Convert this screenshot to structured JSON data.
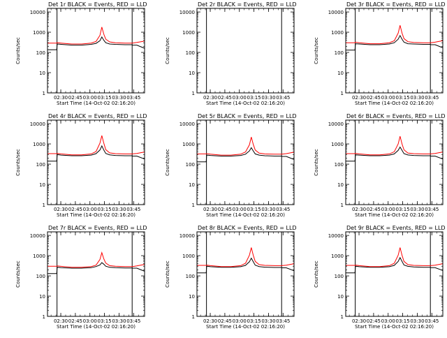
{
  "colors": {
    "background": "#ffffff",
    "axes": "#000000",
    "events_line": "#000000",
    "lld_line": "#ff0000"
  },
  "shared": {
    "xlabel": "Start Time (14-Oct-02 02:16:20)",
    "ylabel": "Counts/sec",
    "x_tick_labels": [
      "02:30",
      "02:45",
      "03:00",
      "03:15",
      "03:30",
      "03:45"
    ],
    "y_tick_labels": [
      "1",
      "10",
      "100",
      "1000",
      "10000"
    ]
  },
  "chart_data": [
    {
      "type": "line",
      "title": "Det 1r BLACK = Events, RED = LLD",
      "x_unit": "minutes after 02:16:20",
      "xlim": [
        0,
        100
      ],
      "ylim": [
        1,
        15000
      ],
      "y_scale": "log",
      "grid": false,
      "vlines": [
        9.8,
        87.2
      ],
      "x": [
        0,
        4,
        9.5,
        10,
        14,
        25,
        35,
        45,
        50,
        54,
        56,
        58,
        60,
        64,
        70,
        80,
        87,
        87.5,
        92,
        100
      ],
      "series": [
        {
          "name": "BLACK = Events",
          "color": "#000000",
          "values": [
            135,
            135,
            135,
            260,
            250,
            230,
            230,
            250,
            280,
            380,
            580,
            400,
            300,
            260,
            250,
            240,
            240,
            230,
            230,
            160
          ]
        },
        {
          "name": "RED = LLD",
          "color": "#ff0000",
          "values": [
            290,
            290,
            290,
            300,
            290,
            260,
            260,
            290,
            350,
            700,
            1800,
            800,
            450,
            330,
            300,
            290,
            290,
            290,
            310,
            360
          ]
        }
      ]
    },
    {
      "type": "line",
      "title": "Det 2r BLACK = Events, RED = LLD",
      "x_unit": "minutes after 02:16:20",
      "xlim": [
        0,
        100
      ],
      "ylim": [
        1,
        15000
      ],
      "y_scale": "log",
      "grid": false,
      "vlines": [
        9.8,
        87.2
      ],
      "x": [],
      "series": []
    },
    {
      "type": "line",
      "title": "Det 3r BLACK = Events, RED = LLD",
      "x_unit": "minutes after 02:16:20",
      "xlim": [
        0,
        100
      ],
      "ylim": [
        1,
        15000
      ],
      "y_scale": "log",
      "grid": false,
      "vlines": [
        9.8,
        87.2
      ],
      "x": [
        0,
        4,
        9.5,
        10,
        14,
        25,
        35,
        45,
        50,
        54,
        56,
        58,
        60,
        64,
        70,
        80,
        87,
        87.5,
        92,
        100
      ],
      "series": [
        {
          "name": "BLACK = Events",
          "color": "#000000",
          "values": [
            130,
            130,
            130,
            270,
            260,
            240,
            240,
            260,
            300,
            450,
            680,
            450,
            320,
            270,
            260,
            250,
            250,
            240,
            240,
            170
          ]
        },
        {
          "name": "RED = LLD",
          "color": "#ff0000",
          "values": [
            300,
            300,
            300,
            320,
            300,
            270,
            270,
            300,
            380,
            900,
            2200,
            900,
            480,
            340,
            310,
            300,
            300,
            300,
            320,
            380
          ]
        }
      ]
    },
    {
      "type": "line",
      "title": "Det 4r BLACK = Events, RED = LLD",
      "x_unit": "minutes after 02:16:20",
      "xlim": [
        0,
        100
      ],
      "ylim": [
        1,
        15000
      ],
      "y_scale": "log",
      "grid": false,
      "vlines": [
        9.8,
        87.2
      ],
      "x": [
        0,
        4,
        9.5,
        10,
        14,
        25,
        35,
        45,
        50,
        54,
        56,
        58,
        60,
        64,
        70,
        80,
        87,
        87.5,
        92,
        100
      ],
      "series": [
        {
          "name": "BLACK = Events",
          "color": "#000000",
          "values": [
            140,
            140,
            140,
            300,
            280,
            260,
            260,
            280,
            330,
            500,
            800,
            500,
            340,
            290,
            270,
            260,
            260,
            250,
            250,
            180
          ]
        },
        {
          "name": "RED = LLD",
          "color": "#ff0000",
          "values": [
            330,
            330,
            330,
            340,
            320,
            290,
            290,
            320,
            420,
            1100,
            2600,
            1100,
            520,
            360,
            330,
            320,
            320,
            320,
            340,
            400
          ]
        }
      ]
    },
    {
      "type": "line",
      "title": "Det 5r BLACK = Events, RED = LLD",
      "x_unit": "minutes after 02:16:20",
      "xlim": [
        0,
        100
      ],
      "ylim": [
        1,
        15000
      ],
      "y_scale": "log",
      "grid": false,
      "vlines": [
        9.8,
        87.2
      ],
      "x": [
        0,
        4,
        9.5,
        10,
        14,
        25,
        35,
        45,
        50,
        54,
        56,
        58,
        60,
        64,
        70,
        80,
        87,
        87.5,
        92,
        100
      ],
      "series": [
        {
          "name": "BLACK = Events",
          "color": "#000000",
          "values": [
            130,
            130,
            130,
            280,
            270,
            250,
            250,
            270,
            310,
            450,
            650,
            450,
            320,
            280,
            260,
            250,
            250,
            240,
            240,
            170
          ]
        },
        {
          "name": "RED = LLD",
          "color": "#ff0000",
          "values": [
            320,
            320,
            320,
            330,
            310,
            280,
            280,
            310,
            400,
            900,
            2200,
            950,
            500,
            350,
            320,
            310,
            310,
            310,
            330,
            390
          ]
        }
      ]
    },
    {
      "type": "line",
      "title": "Det 6r BLACK = Events, RED = LLD",
      "x_unit": "minutes after 02:16:20",
      "xlim": [
        0,
        100
      ],
      "ylim": [
        1,
        15000
      ],
      "y_scale": "log",
      "grid": false,
      "vlines": [
        9.8,
        87.2
      ],
      "x": [
        0,
        4,
        9.5,
        10,
        14,
        25,
        35,
        45,
        50,
        54,
        56,
        58,
        60,
        64,
        70,
        80,
        87,
        87.5,
        92,
        100
      ],
      "series": [
        {
          "name": "BLACK = Events",
          "color": "#000000",
          "values": [
            140,
            140,
            140,
            290,
            280,
            260,
            260,
            280,
            320,
            480,
            700,
            480,
            330,
            285,
            270,
            260,
            260,
            250,
            250,
            180
          ]
        },
        {
          "name": "RED = LLD",
          "color": "#ff0000",
          "values": [
            330,
            330,
            330,
            340,
            320,
            290,
            290,
            320,
            410,
            1000,
            2400,
            1000,
            510,
            355,
            330,
            320,
            320,
            320,
            340,
            400
          ]
        }
      ]
    },
    {
      "type": "line",
      "title": "Det 7r BLACK = Events, RED = LLD",
      "x_unit": "minutes after 02:16:20",
      "xlim": [
        0,
        100
      ],
      "ylim": [
        1,
        15000
      ],
      "y_scale": "log",
      "grid": false,
      "vlines": [
        9.8,
        87.2
      ],
      "x": [
        0,
        4,
        9.5,
        10,
        14,
        25,
        35,
        45,
        50,
        54,
        56,
        58,
        60,
        64,
        70,
        80,
        87,
        87.5,
        92,
        100
      ],
      "series": [
        {
          "name": "BLACK = Events",
          "color": "#000000",
          "values": [
            130,
            130,
            130,
            270,
            255,
            240,
            240,
            255,
            290,
            350,
            450,
            380,
            300,
            265,
            255,
            245,
            245,
            240,
            240,
            170
          ]
        },
        {
          "name": "RED = LLD",
          "color": "#ff0000",
          "values": [
            300,
            300,
            300,
            310,
            295,
            265,
            265,
            290,
            340,
            650,
            1400,
            700,
            430,
            320,
            300,
            290,
            290,
            290,
            310,
            370
          ]
        }
      ]
    },
    {
      "type": "line",
      "title": "Det 8r BLACK = Events, RED = LLD",
      "x_unit": "minutes after 02:16:20",
      "xlim": [
        0,
        100
      ],
      "ylim": [
        1,
        15000
      ],
      "y_scale": "log",
      "grid": false,
      "vlines": [
        9.8,
        87.2
      ],
      "x": [
        0,
        4,
        9.5,
        10,
        14,
        25,
        35,
        45,
        50,
        54,
        56,
        58,
        60,
        64,
        70,
        80,
        87,
        87.5,
        92,
        100
      ],
      "series": [
        {
          "name": "BLACK = Events",
          "color": "#000000",
          "values": [
            140,
            140,
            140,
            300,
            285,
            265,
            265,
            285,
            330,
            500,
            750,
            500,
            340,
            290,
            270,
            260,
            260,
            250,
            250,
            180
          ]
        },
        {
          "name": "RED = LLD",
          "color": "#ff0000",
          "values": [
            330,
            330,
            330,
            340,
            320,
            290,
            290,
            320,
            420,
            1050,
            2500,
            1050,
            520,
            360,
            330,
            320,
            320,
            320,
            340,
            400
          ]
        }
      ]
    },
    {
      "type": "line",
      "title": "Det 9r BLACK = Events, RED = LLD",
      "x_unit": "minutes after 02:16:20",
      "xlim": [
        0,
        100
      ],
      "ylim": [
        1,
        15000
      ],
      "y_scale": "log",
      "grid": false,
      "vlines": [
        9.8,
        87.2
      ],
      "x": [
        0,
        4,
        9.5,
        10,
        14,
        25,
        35,
        45,
        50,
        54,
        56,
        58,
        60,
        64,
        70,
        80,
        87,
        87.5,
        92,
        100
      ],
      "series": [
        {
          "name": "BLACK = Events",
          "color": "#000000",
          "values": [
            140,
            140,
            140,
            300,
            285,
            265,
            265,
            285,
            330,
            520,
            800,
            520,
            345,
            295,
            275,
            265,
            265,
            255,
            255,
            185
          ]
        },
        {
          "name": "RED = LLD",
          "color": "#ff0000",
          "values": [
            330,
            330,
            330,
            340,
            320,
            290,
            290,
            320,
            420,
            1050,
            2500,
            1050,
            520,
            360,
            330,
            320,
            320,
            320,
            340,
            400
          ]
        }
      ]
    }
  ]
}
